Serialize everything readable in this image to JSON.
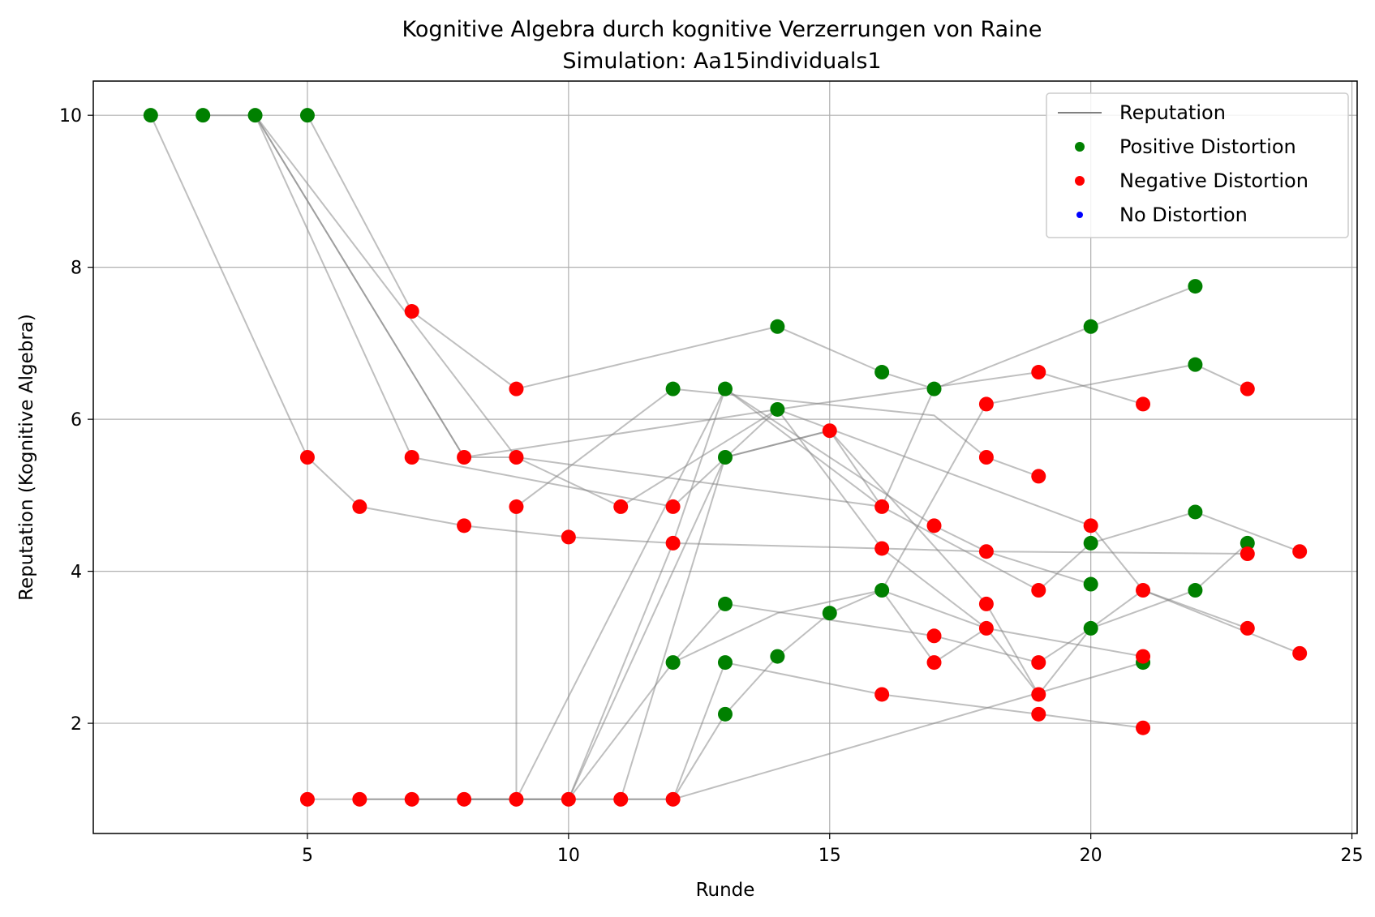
{
  "chart_data": {
    "type": "scatter",
    "title": "Kognitive Algebra durch kognitive Verzerrungen von Raine",
    "subtitle": "Simulation: Aa15individuals1",
    "xlabel": "Runde",
    "ylabel": "Reputation (Kognitive Algebra)",
    "xlim": [
      0.9,
      25.1
    ],
    "ylim": [
      0.55,
      10.45
    ],
    "xticks": [
      5,
      10,
      15,
      20,
      25
    ],
    "yticks": [
      2,
      4,
      6,
      8,
      10
    ],
    "grid": true,
    "legend_position": "top-right",
    "legend": [
      {
        "label": "Reputation",
        "kind": "line",
        "color": "#808080"
      },
      {
        "label": "Positive Distortion",
        "kind": "marker",
        "color": "#008000"
      },
      {
        "label": "Negative Distortion",
        "kind": "marker",
        "color": "#ff0000"
      },
      {
        "label": "No Distortion",
        "kind": "marker",
        "color": "#0000ff"
      }
    ],
    "colors": {
      "positive": "#008000",
      "negative": "#ff0000",
      "none": "#0000ff",
      "line": "#808080"
    },
    "trajectories": [
      [
        [
          2,
          10
        ],
        [
          5,
          5.5
        ],
        [
          6,
          4.85
        ],
        [
          8,
          4.6
        ],
        [
          10,
          4.45
        ],
        [
          12,
          4.37
        ],
        [
          16,
          4.3
        ],
        [
          18,
          4.26
        ],
        [
          23,
          4.23
        ]
      ],
      [
        [
          3,
          10
        ],
        [
          4,
          10
        ],
        [
          8,
          5.5
        ],
        [
          9,
          5.5
        ],
        [
          16,
          4.85
        ],
        [
          19,
          3.75
        ],
        [
          20,
          4.37
        ],
        [
          22,
          4.78
        ],
        [
          24,
          4.26
        ]
      ],
      [
        [
          4,
          10
        ],
        [
          7,
          5.5
        ],
        [
          12,
          4.85
        ],
        [
          14,
          6.13
        ],
        [
          20,
          4.6
        ],
        [
          21,
          3.75
        ],
        [
          23,
          3.25
        ]
      ],
      [
        [
          4,
          10
        ],
        [
          9,
          5.5
        ],
        [
          11,
          4.85
        ],
        [
          14,
          6.13
        ],
        [
          19,
          6.62
        ],
        [
          21,
          6.2
        ]
      ],
      [
        [
          4,
          10
        ],
        [
          8,
          5.5
        ],
        [
          14,
          6.13
        ],
        [
          16,
          4.3
        ],
        [
          18,
          3.25
        ],
        [
          21,
          2.88
        ]
      ],
      [
        [
          5,
          10
        ],
        [
          7,
          7.42
        ],
        [
          9,
          6.4
        ],
        [
          14,
          7.22
        ],
        [
          16,
          6.62
        ],
        [
          17,
          6.4
        ]
      ],
      [
        [
          5,
          1
        ],
        [
          8,
          1
        ],
        [
          9,
          1
        ],
        [
          12,
          1
        ],
        [
          21,
          2.8
        ]
      ],
      [
        [
          6,
          1
        ],
        [
          9,
          1
        ],
        [
          13,
          6.4
        ],
        [
          17,
          4.6
        ],
        [
          18,
          4.26
        ],
        [
          20,
          3.83
        ]
      ],
      [
        [
          7,
          1
        ],
        [
          9,
          1
        ],
        [
          9,
          4.85
        ],
        [
          12,
          6.4
        ],
        [
          17,
          6.05
        ],
        [
          18,
          5.5
        ],
        [
          19,
          5.25
        ]
      ],
      [
        [
          8,
          1
        ],
        [
          10,
          1
        ],
        [
          13,
          5.5
        ],
        [
          15,
          5.85
        ],
        [
          16,
          4.85
        ],
        [
          17,
          6.4
        ],
        [
          20,
          7.22
        ],
        [
          22,
          7.75
        ]
      ],
      [
        [
          9,
          1
        ],
        [
          10,
          1
        ],
        [
          12,
          4.37
        ],
        [
          13,
          6.4
        ],
        [
          16,
          4.85
        ]
      ],
      [
        [
          10,
          1
        ],
        [
          12,
          2.8
        ],
        [
          13,
          3.57
        ],
        [
          17,
          3.15
        ],
        [
          19,
          2.8
        ],
        [
          20,
          3.25
        ],
        [
          21,
          3.75
        ],
        [
          24,
          2.92
        ]
      ],
      [
        [
          10,
          1
        ],
        [
          11,
          1
        ],
        [
          13,
          5.5
        ],
        [
          15,
          5.85
        ],
        [
          18,
          3.57
        ],
        [
          19,
          2.38
        ],
        [
          20,
          3.25
        ],
        [
          22,
          3.75
        ],
        [
          23,
          4.37
        ]
      ],
      [
        [
          11,
          1
        ],
        [
          12,
          1
        ],
        [
          13,
          2.8
        ],
        [
          16,
          2.38
        ],
        [
          19,
          2.12
        ],
        [
          21,
          1.94
        ]
      ],
      [
        [
          12,
          1
        ],
        [
          13,
          2.12
        ],
        [
          14,
          2.88
        ],
        [
          15,
          3.45
        ],
        [
          16,
          3.75
        ],
        [
          18,
          6.2
        ],
        [
          22,
          6.72
        ],
        [
          23,
          6.4
        ]
      ],
      [
        [
          12,
          2.8
        ],
        [
          14,
          3.45
        ],
        [
          16,
          3.75
        ],
        [
          18,
          3.25
        ],
        [
          19,
          2.38
        ]
      ],
      [
        [
          18,
          3.25
        ],
        [
          17,
          2.8
        ],
        [
          16,
          3.75
        ]
      ]
    ],
    "positive_points": [
      [
        2,
        10
      ],
      [
        3,
        10
      ],
      [
        4,
        10
      ],
      [
        5,
        10
      ],
      [
        12,
        6.4
      ],
      [
        13,
        6.4
      ],
      [
        13,
        5.5
      ],
      [
        14,
        7.22
      ],
      [
        14,
        6.13
      ],
      [
        16,
        6.62
      ],
      [
        17,
        6.4
      ],
      [
        20,
        7.22
      ],
      [
        22,
        7.75
      ],
      [
        22,
        6.72
      ],
      [
        20,
        4.37
      ],
      [
        22,
        4.78
      ],
      [
        23,
        4.37
      ],
      [
        16,
        3.75
      ],
      [
        15,
        3.45
      ],
      [
        13,
        3.57
      ],
      [
        12,
        2.8
      ],
      [
        13,
        2.8
      ],
      [
        14,
        2.88
      ],
      [
        13,
        2.12
      ],
      [
        20,
        3.83
      ],
      [
        20,
        3.25
      ],
      [
        21,
        2.8
      ],
      [
        22,
        3.75
      ]
    ],
    "negative_points": [
      [
        7,
        7.42
      ],
      [
        9,
        6.4
      ],
      [
        15,
        5.85
      ],
      [
        19,
        6.62
      ],
      [
        18,
        6.2
      ],
      [
        21,
        6.2
      ],
      [
        23,
        6.4
      ],
      [
        5,
        5.5
      ],
      [
        7,
        5.5
      ],
      [
        8,
        5.5
      ],
      [
        9,
        5.5
      ],
      [
        9,
        4.85
      ],
      [
        6,
        4.85
      ],
      [
        8,
        4.6
      ],
      [
        10,
        4.45
      ],
      [
        11,
        4.85
      ],
      [
        12,
        4.85
      ],
      [
        12,
        4.37
      ],
      [
        16,
        4.85
      ],
      [
        16,
        4.3
      ],
      [
        17,
        4.6
      ],
      [
        18,
        5.5
      ],
      [
        19,
        5.25
      ],
      [
        18,
        4.26
      ],
      [
        20,
        4.6
      ],
      [
        19,
        3.75
      ],
      [
        21,
        3.75
      ],
      [
        23,
        4.23
      ],
      [
        24,
        4.26
      ],
      [
        18,
        3.57
      ],
      [
        18,
        3.25
      ],
      [
        17,
        3.15
      ],
      [
        17,
        2.8
      ],
      [
        19,
        2.8
      ],
      [
        21,
        2.88
      ],
      [
        23,
        3.25
      ],
      [
        24,
        2.92
      ],
      [
        16,
        2.38
      ],
      [
        19,
        2.38
      ],
      [
        19,
        2.12
      ],
      [
        21,
        1.94
      ],
      [
        5,
        1
      ],
      [
        6,
        1
      ],
      [
        7,
        1
      ],
      [
        8,
        1
      ],
      [
        9,
        1
      ],
      [
        10,
        1
      ],
      [
        11,
        1
      ],
      [
        12,
        1
      ]
    ],
    "none_points": []
  }
}
